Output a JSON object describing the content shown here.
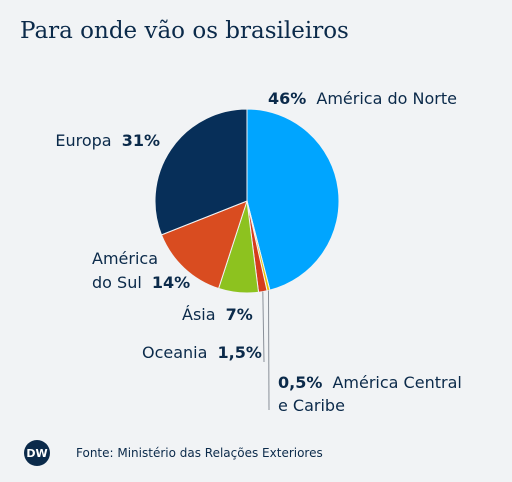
{
  "title": "Para onde vão os brasileiros",
  "source": "Fonte: Ministério das Relações Exteriores",
  "logo_text": "DW",
  "colors": {
    "background": "#f1f3f5",
    "text": "#0b2a4a",
    "leader_line": "#8a9099"
  },
  "chart_data": {
    "type": "pie",
    "title": "Para onde vão os brasileiros",
    "slices": [
      {
        "name": "América do Norte",
        "value": 46,
        "pct_label": "46%",
        "name_label": "América do Norte",
        "color": "#00a5ff"
      },
      {
        "name": "América Central e Caribe",
        "value": 0.5,
        "pct_label": "0,5%",
        "name_label": "América Central",
        "name_label2": "e Caribe",
        "color": "#e8c200"
      },
      {
        "name": "Oceania",
        "value": 1.5,
        "pct_label": "1,5%",
        "name_label": "Oceania",
        "color": "#d63c1c"
      },
      {
        "name": "Ásia",
        "value": 7,
        "pct_label": "7%",
        "name_label": "Ásia",
        "color": "#8dc21f"
      },
      {
        "name": "América do Sul",
        "value": 14,
        "pct_label": "14%",
        "name_label": "América",
        "name_label2": "do Sul",
        "color": "#d94c20"
      },
      {
        "name": "Europa",
        "value": 31,
        "pct_label": "31%",
        "name_label": "Europa",
        "color": "#072f59"
      }
    ]
  }
}
